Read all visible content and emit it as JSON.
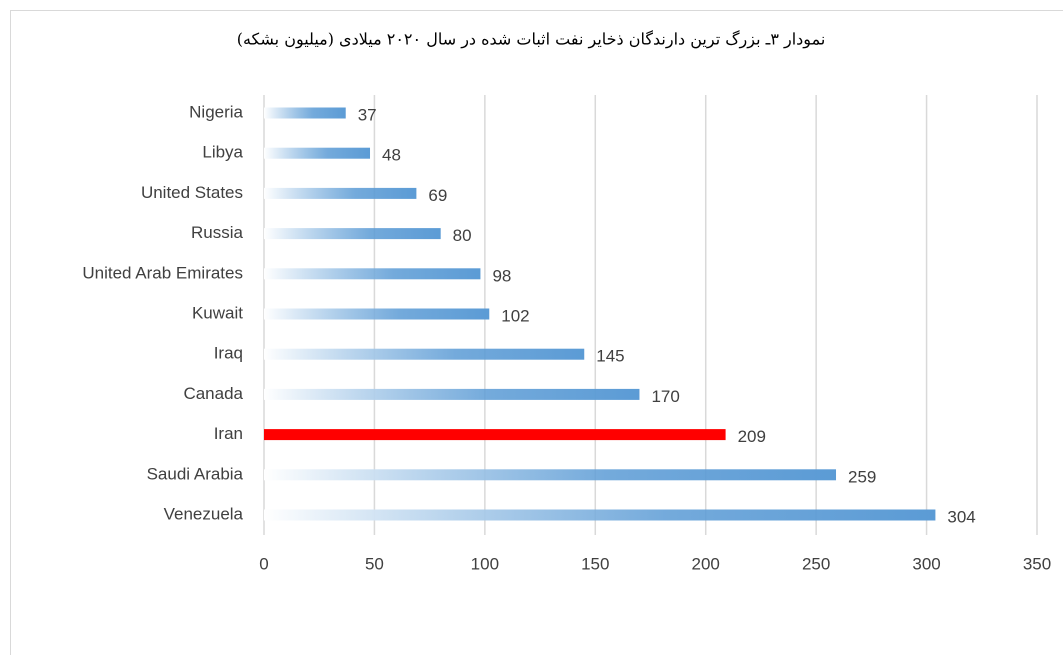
{
  "chart_data": {
    "type": "barh",
    "title": "نمودار ۳ـ بزرگ ترین دارندگان ذخایر نفت اثبات شده در سال ۲۰۲۰ میلادی (میلیون بشکه)",
    "categories": [
      "Nigeria",
      "Libya",
      "United States",
      "Russia",
      "United Arab Emirates",
      "Kuwait",
      "Iraq",
      "Canada",
      "Iran",
      "Saudi Arabia",
      "Venezuela"
    ],
    "values": [
      37,
      48,
      69,
      80,
      98,
      102,
      145,
      170,
      209,
      259,
      304
    ],
    "color": "#5b9bd5",
    "highlight": {
      "category": "Iran",
      "color": "#ff0000"
    },
    "xlim": [
      0,
      350
    ],
    "xticks": [
      0,
      50,
      100,
      150,
      200,
      250,
      300,
      350
    ],
    "grid": true
  }
}
